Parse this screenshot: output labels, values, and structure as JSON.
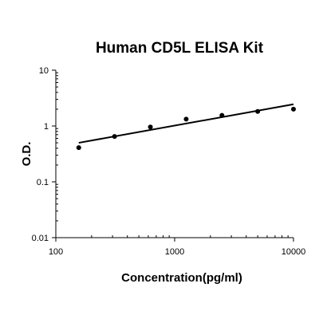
{
  "chart_data": {
    "type": "scatter",
    "title": "Human CD5L ELISA Kit",
    "xlabel": "Concentration(pg/ml)",
    "ylabel": "O.D.",
    "xscale": "log",
    "yscale": "log",
    "xlim": [
      100,
      10000
    ],
    "ylim": [
      0.01,
      10
    ],
    "x_tick_labels": [
      "100",
      "1000",
      "10000"
    ],
    "y_tick_labels": [
      "0.01",
      "0.1",
      "1",
      "10"
    ],
    "grid": false,
    "legend": "none",
    "series": [
      {
        "x": [
          156,
          312,
          625,
          1250,
          2500,
          5000,
          10000
        ],
        "y": [
          0.41,
          0.65,
          0.96,
          1.33,
          1.55,
          1.82,
          2.0
        ]
      }
    ],
    "fit_line": {
      "x": [
        156,
        10000
      ],
      "y": [
        0.5,
        2.45
      ]
    }
  }
}
